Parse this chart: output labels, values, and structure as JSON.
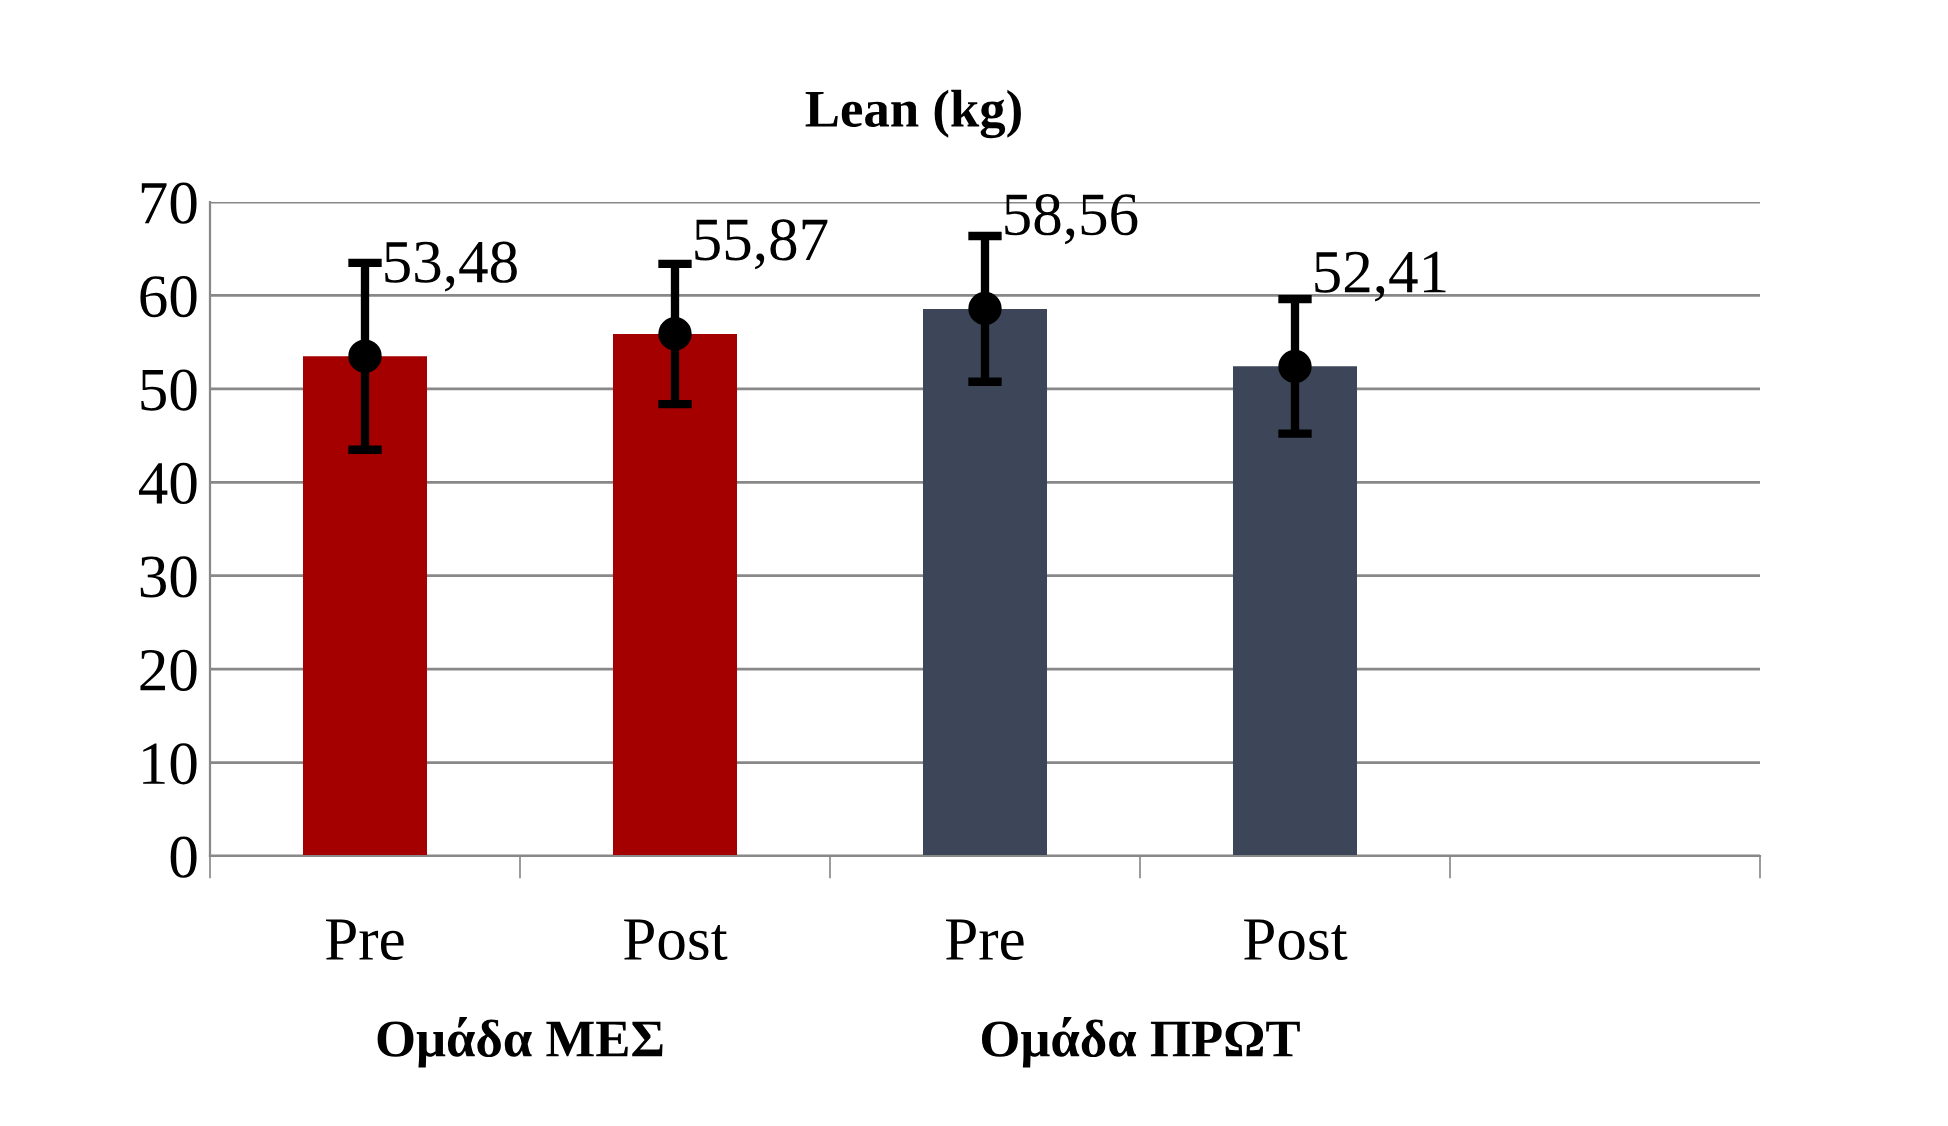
{
  "chart_data": {
    "type": "bar",
    "title": "Lean (kg)",
    "categories": [
      "Pre",
      "Post",
      "Pre",
      "Post",
      null
    ],
    "series": [
      {
        "values": [
          53.48,
          55.87,
          58.56,
          52.41,
          null
        ],
        "colors": [
          "#a50000",
          "#a50000",
          "#3d4659",
          "#3d4659",
          null
        ],
        "value_labels": [
          "53,48",
          "55,87",
          "58,56",
          "52,41",
          null
        ],
        "errors": [
          10,
          7.5,
          7.8,
          7.2,
          null
        ]
      },
      {
        "type": "scatter",
        "color": "#000000",
        "values": [
          53.5,
          55.9,
          58.6,
          52.4,
          null
        ]
      }
    ],
    "marker": "circle",
    "ylim": [
      0,
      70
    ],
    "yticks": [
      0,
      10,
      20,
      30,
      40,
      50,
      60,
      70
    ],
    "grid": "y",
    "legend": false,
    "annotations": [
      "Ομάδα ΜΕΣ",
      "Ομάδα ΠΡΩΤ"
    ]
  }
}
